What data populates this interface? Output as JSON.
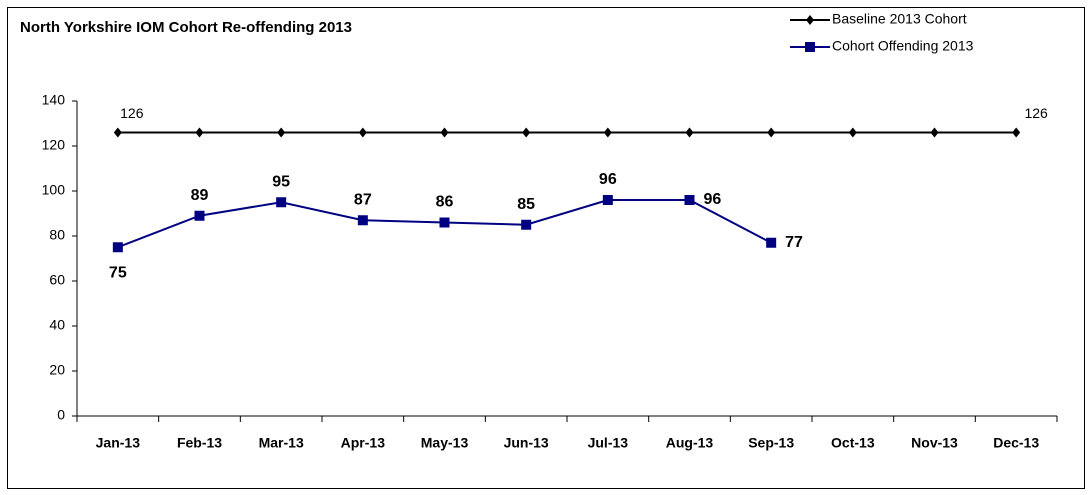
{
  "chart_data": {
    "type": "line",
    "title": "North Yorkshire IOM Cohort Re-offending 2013",
    "categories": [
      "Jan-13",
      "Feb-13",
      "Mar-13",
      "Apr-13",
      "May-13",
      "Jun-13",
      "Jul-13",
      "Aug-13",
      "Sep-13",
      "Oct-13",
      "Nov-13",
      "Dec-13"
    ],
    "series": [
      {
        "name": "Baseline 2013 Cohort",
        "color": "#000000",
        "marker": "diamond",
        "labeled": [
          0,
          11
        ],
        "values": [
          126,
          126,
          126,
          126,
          126,
          126,
          126,
          126,
          126,
          126,
          126,
          126
        ]
      },
      {
        "name": "Cohort Offending 2013",
        "color": "#000080",
        "marker": "square",
        "labeled": [
          0,
          1,
          2,
          3,
          4,
          5,
          6,
          7,
          8
        ],
        "values": [
          75,
          89,
          95,
          87,
          86,
          85,
          96,
          96,
          77,
          null,
          null,
          null
        ]
      }
    ],
    "ylim": [
      0,
      140
    ],
    "yticks": [
      0,
      20,
      40,
      60,
      80,
      100,
      120,
      140
    ],
    "grid": false,
    "legend": "top-right"
  }
}
